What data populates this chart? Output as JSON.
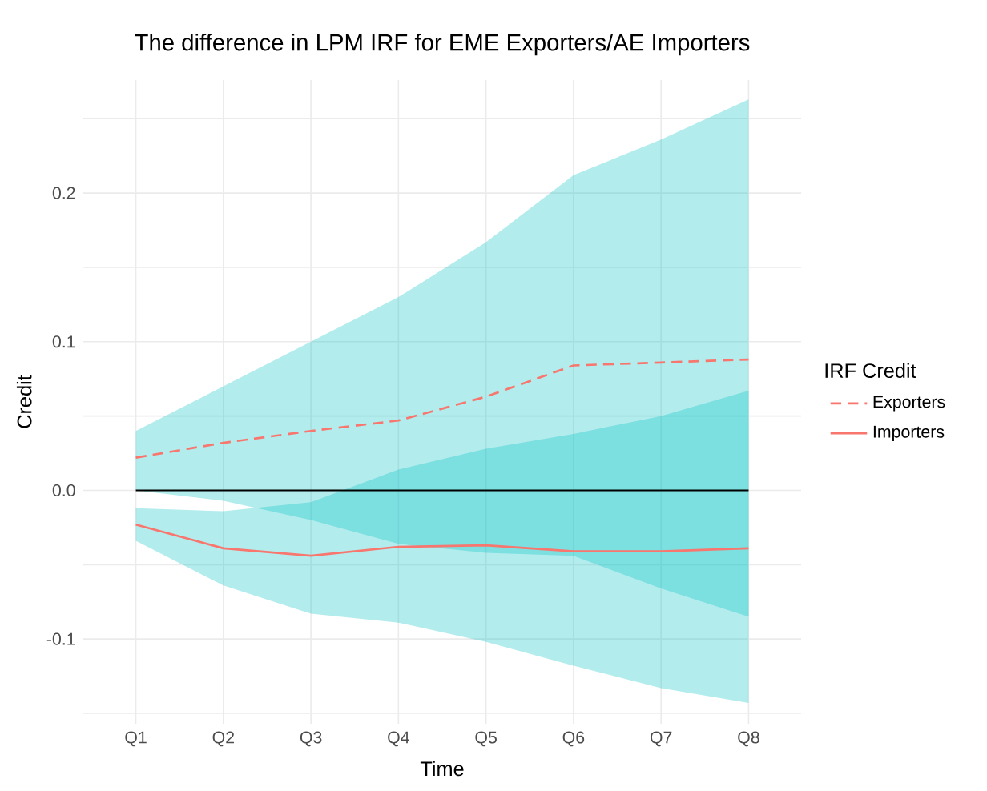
{
  "chart_data": {
    "type": "line",
    "title": "The difference in LPM IRF for EME Exporters/AE Importers",
    "xlabel": "Time",
    "ylabel": "Credit",
    "legend_title": "IRF Credit",
    "categories": [
      "Q1",
      "Q2",
      "Q3",
      "Q4",
      "Q5",
      "Q6",
      "Q7",
      "Q8"
    ],
    "series": [
      {
        "name": "Exporters",
        "color": "#f8766d",
        "line_style": "dashed",
        "values": [
          0.022,
          0.032,
          0.04,
          0.047,
          0.063,
          0.084,
          0.086,
          0.088
        ],
        "lower": [
          0.0,
          -0.007,
          -0.02,
          -0.036,
          -0.042,
          -0.044,
          -0.066,
          -0.085
        ],
        "upper": [
          0.04,
          0.07,
          0.1,
          0.13,
          0.167,
          0.212,
          0.236,
          0.263
        ]
      },
      {
        "name": "Importers",
        "color": "#f8766d",
        "line_style": "solid",
        "values": [
          -0.023,
          -0.039,
          -0.044,
          -0.038,
          -0.037,
          -0.041,
          -0.041,
          -0.039
        ],
        "lower": [
          -0.034,
          -0.064,
          -0.083,
          -0.089,
          -0.102,
          -0.118,
          -0.133,
          -0.143
        ],
        "upper": [
          -0.012,
          -0.014,
          -0.008,
          0.014,
          0.028,
          0.038,
          0.05,
          0.067
        ]
      }
    ],
    "ylim": [
      -0.157,
      0.276
    ],
    "yticks": [
      {
        "value": -0.15,
        "label": null
      },
      {
        "value": -0.1,
        "label": "-0.1"
      },
      {
        "value": -0.05,
        "label": null
      },
      {
        "value": 0.0,
        "label": "0.0"
      },
      {
        "value": 0.05,
        "label": null
      },
      {
        "value": 0.1,
        "label": "0.1"
      },
      {
        "value": 0.15,
        "label": null
      },
      {
        "value": 0.2,
        "label": "0.2"
      },
      {
        "value": 0.25,
        "label": null
      }
    ],
    "ref_lines": [
      {
        "axis": "y",
        "value": 0,
        "color": "#000000"
      }
    ],
    "grid": true,
    "legend": "right"
  }
}
